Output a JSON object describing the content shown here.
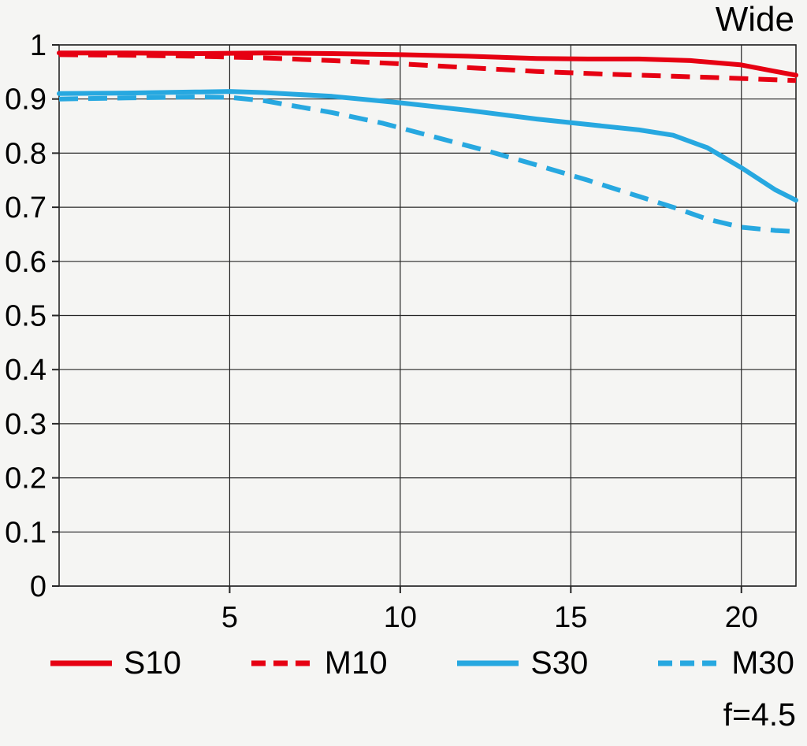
{
  "page": {
    "title": "Wide",
    "aperture_label": "f=4.5"
  },
  "colors": {
    "red": "#e60012",
    "blue": "#27a8e0",
    "grid": "#262626",
    "text": "#000000",
    "background": "#f5f5f3"
  },
  "chart_data": {
    "type": "line",
    "title": "Wide",
    "annotation": "f=4.5",
    "xlabel": "",
    "ylabel": "",
    "xlim": [
      0,
      21.6
    ],
    "ylim": [
      0,
      1
    ],
    "grid": true,
    "legend_position": "bottom",
    "xtick_values": [
      5,
      10,
      15,
      20
    ],
    "xtick_labels": [
      "5",
      "10",
      "15",
      "20"
    ],
    "ytick_values": [
      0,
      0.1,
      0.2,
      0.3,
      0.4,
      0.5,
      0.6,
      0.7,
      0.8,
      0.9,
      1
    ],
    "ytick_labels": [
      "0",
      "0.1",
      "0.2",
      "0.3",
      "0.4",
      "0.5",
      "0.6",
      "0.7",
      "0.8",
      "0.9",
      "1"
    ],
    "series": [
      {
        "name": "S10",
        "color": "#e60012",
        "style": "solid",
        "x": [
          0,
          2,
          4,
          6,
          8,
          10,
          12,
          14,
          15.5,
          17,
          18.5,
          20,
          21,
          21.6
        ],
        "y": [
          0.985,
          0.985,
          0.984,
          0.985,
          0.984,
          0.982,
          0.979,
          0.975,
          0.974,
          0.974,
          0.971,
          0.963,
          0.951,
          0.944
        ]
      },
      {
        "name": "M10",
        "color": "#e60012",
        "style": "dashed",
        "x": [
          0,
          2,
          4,
          6,
          8,
          10,
          12,
          14,
          16,
          18,
          20,
          21.6
        ],
        "y": [
          0.982,
          0.981,
          0.979,
          0.976,
          0.971,
          0.965,
          0.958,
          0.951,
          0.946,
          0.942,
          0.938,
          0.934
        ]
      },
      {
        "name": "S30",
        "color": "#27a8e0",
        "style": "solid",
        "x": [
          0,
          2,
          4,
          5,
          6,
          8,
          10,
          12,
          14,
          15.5,
          17,
          18,
          19,
          20,
          21,
          21.6
        ],
        "y": [
          0.91,
          0.911,
          0.913,
          0.914,
          0.912,
          0.905,
          0.893,
          0.879,
          0.863,
          0.853,
          0.843,
          0.833,
          0.81,
          0.773,
          0.732,
          0.713
        ]
      },
      {
        "name": "M30",
        "color": "#27a8e0",
        "style": "dashed",
        "x": [
          0,
          2,
          4,
          5,
          6,
          8,
          9.5,
          11,
          12.5,
          14,
          15.5,
          17,
          18,
          19,
          20,
          21,
          21.6
        ],
        "y": [
          0.9,
          0.902,
          0.904,
          0.903,
          0.897,
          0.875,
          0.855,
          0.83,
          0.805,
          0.778,
          0.75,
          0.72,
          0.7,
          0.678,
          0.663,
          0.657,
          0.655
        ]
      }
    ]
  }
}
